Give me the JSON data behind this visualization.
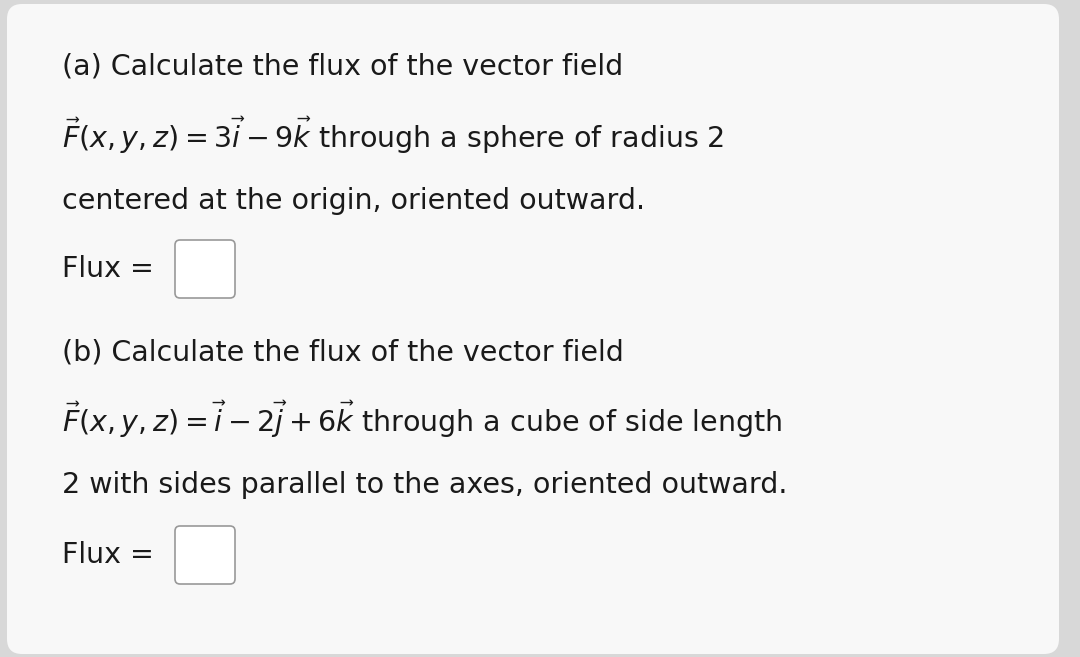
{
  "bg_outer": "#d8d8d8",
  "bg_card": "#f8f8f8",
  "card_border": "#c0c0c0",
  "text_color": "#1a1a1a",
  "box_color": "#ffffff",
  "box_border": "#999999",
  "font_size_main": 20.5,
  "line_a1": "(a) Calculate the flux of the vector field",
  "line_b1": "(b) Calculate the flux of the vector field",
  "line_a3": "centered at the origin, oriented outward.",
  "line_b3": "2 with sides parallel to the axes, oriented outward.",
  "flux_label": "Flux = "
}
